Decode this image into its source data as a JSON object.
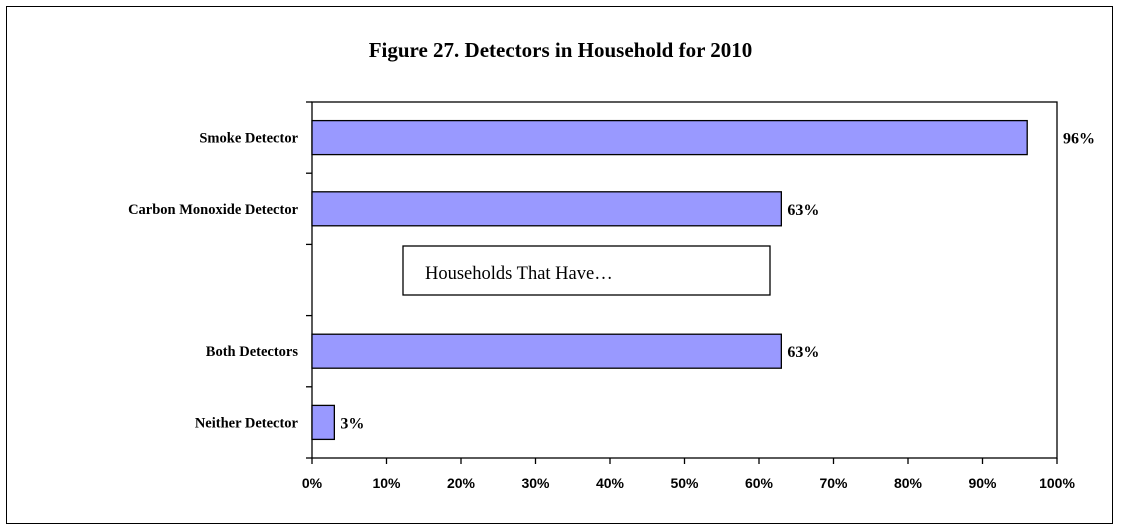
{
  "chart_data": {
    "type": "bar",
    "orientation": "horizontal",
    "title": "Figure 27. Detectors in Household for 2010",
    "categories": [
      "Smoke Detector",
      "Carbon Monoxide Detector",
      "",
      "Both Detectors",
      "Neither Detector"
    ],
    "values": [
      96,
      63,
      null,
      63,
      3
    ],
    "value_labels": [
      "96%",
      "63%",
      "",
      "63%",
      "3%"
    ],
    "xlim": [
      0,
      100
    ],
    "x_ticks": [
      "0%",
      "10%",
      "20%",
      "30%",
      "40%",
      "50%",
      "60%",
      "70%",
      "80%",
      "90%",
      "100%"
    ],
    "annotation": "Households That Have…",
    "bar_color": "#9999ff",
    "grid": false,
    "legend": "none"
  }
}
